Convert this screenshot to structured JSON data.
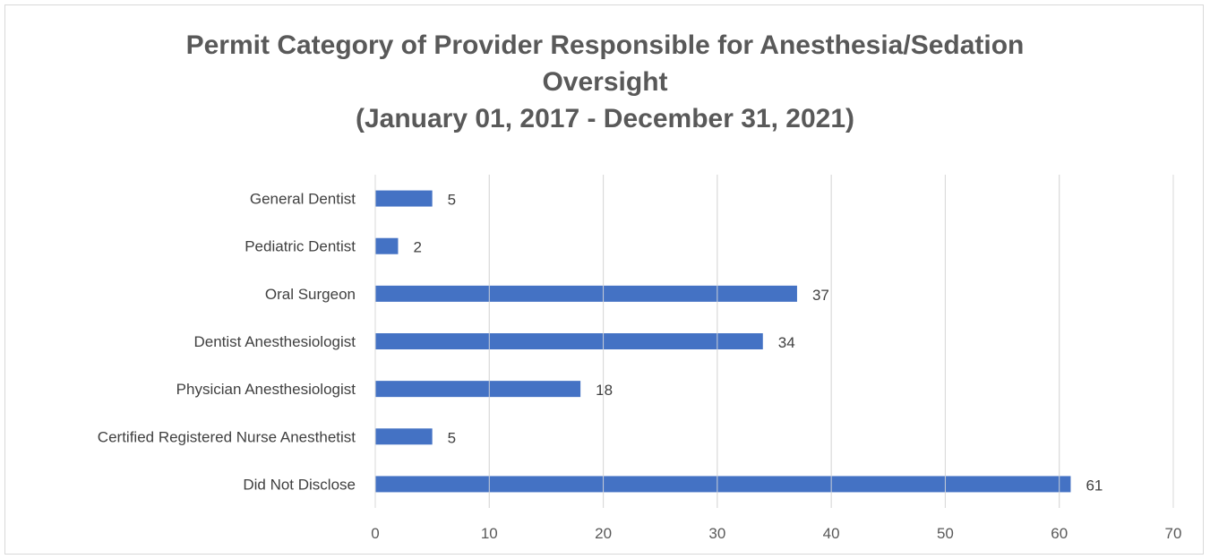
{
  "chart_data": {
    "type": "bar",
    "orientation": "horizontal",
    "title_lines": [
      "Permit Category of Provider Responsible for Anesthesia/Sedation",
      "Oversight",
      "(January 01, 2017 - December 31, 2021)"
    ],
    "categories": [
      "General Dentist",
      "Pediatric Dentist",
      "Oral Surgeon",
      "Dentist Anesthesiologist",
      "Physician Anesthesiologist",
      "Certified Registered Nurse Anesthetist",
      "Did Not Disclose"
    ],
    "values": [
      5,
      2,
      37,
      34,
      18,
      5,
      61
    ],
    "xlim": [
      0,
      70
    ],
    "xticks": [
      0,
      10,
      20,
      30,
      40,
      50,
      60,
      70
    ],
    "grid": true,
    "legend": "none",
    "bar_color": "#4472c4"
  }
}
